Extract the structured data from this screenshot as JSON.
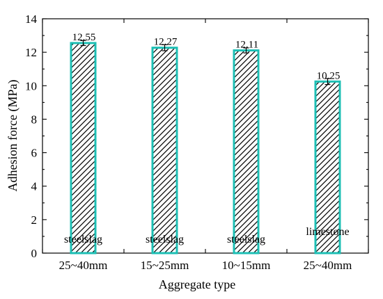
{
  "chart_data": {
    "type": "bar",
    "title": "",
    "xlabel": "Aggregate type",
    "ylabel": "Adhesion force (MPa)",
    "ylim": [
      0,
      14
    ],
    "yticks": [
      0,
      2,
      4,
      6,
      8,
      10,
      12,
      14
    ],
    "categories": [
      "25~40mm",
      "15~25mm",
      "10~15mm",
      "25~40mm"
    ],
    "values": [
      12.55,
      12.27,
      12.11,
      10.25
    ],
    "value_labels": [
      "12.55",
      "12.27",
      "12.11",
      "10.25"
    ],
    "material_labels": [
      "steelslag",
      "steelslag",
      "steelslag",
      "limestone"
    ],
    "error": [
      0.15,
      0.18,
      0.15,
      0.18
    ],
    "bar_fill": "#ffffff",
    "bar_hatch_color": "#000000",
    "bar_edge_color": "#1dbfb4",
    "grid": false,
    "legend": "none"
  }
}
